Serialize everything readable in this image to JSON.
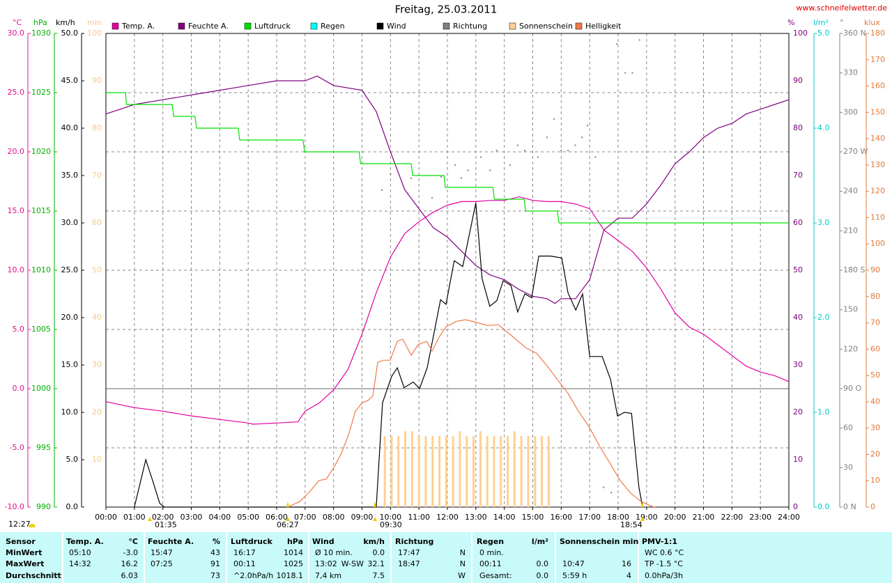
{
  "chart_data": {
    "type": "line",
    "title": "Freitag, 25.03.2011",
    "source": "www.schneifelwetter.de",
    "grid": true,
    "xlim": [
      0,
      24
    ],
    "xticks": [
      {
        "value": 0,
        "label": "00:00"
      },
      {
        "value": 1,
        "label": "01:00"
      },
      {
        "value": 2,
        "label": "02:00"
      },
      {
        "value": 3,
        "label": "03:00"
      },
      {
        "value": 4,
        "label": "04:00"
      },
      {
        "value": 5,
        "label": "05:00"
      },
      {
        "value": 6,
        "label": "06:00"
      },
      {
        "value": 7,
        "label": "07:00"
      },
      {
        "value": 8,
        "label": "08:00"
      },
      {
        "value": 9,
        "label": "09:00"
      },
      {
        "value": 10,
        "label": "10:00"
      },
      {
        "value": 11,
        "label": "11:00"
      },
      {
        "value": 12,
        "label": "12:00"
      },
      {
        "value": 13,
        "label": "13:00"
      },
      {
        "value": 14,
        "label": "14:00"
      },
      {
        "value": 15,
        "label": "15:00"
      },
      {
        "value": 16,
        "label": "16:00"
      },
      {
        "value": 17,
        "label": "17:00"
      },
      {
        "value": 18,
        "label": "18:00"
      },
      {
        "value": 19,
        "label": "19:00"
      },
      {
        "value": 20,
        "label": "20:00"
      },
      {
        "value": 21,
        "label": "21:00"
      },
      {
        "value": 22,
        "label": "22:00"
      },
      {
        "value": 23,
        "label": "23:00"
      },
      {
        "value": 24,
        "label": "24:00"
      }
    ],
    "axes": [
      {
        "unit": "°C",
        "color": "#e0108f",
        "ylim": [
          -10,
          30
        ],
        "yticks": [
          {
            "value": -10,
            "label": "-10.0"
          },
          {
            "value": -5,
            "label": "-5.0"
          },
          {
            "value": 0,
            "label": "0.0"
          },
          {
            "value": 5,
            "label": "5.0"
          },
          {
            "value": 10,
            "label": "10.0"
          },
          {
            "value": 15,
            "label": "15.0"
          },
          {
            "value": 20,
            "label": "20.0"
          },
          {
            "value": 25,
            "label": "25.0"
          },
          {
            "value": 30,
            "label": "30.0"
          }
        ]
      },
      {
        "unit": "hPa",
        "color": "#00b000",
        "ylim": [
          990,
          1030
        ],
        "yticks": [
          990,
          995,
          1000,
          1005,
          1010,
          1015,
          1020,
          1025,
          1030
        ]
      },
      {
        "unit": "km/h",
        "color": "#000000",
        "ylim": [
          0,
          50
        ],
        "yticks": [
          {
            "value": 0,
            "label": "0.0"
          },
          {
            "value": 5,
            "label": "5.0"
          },
          {
            "value": 10,
            "label": "10.0"
          },
          {
            "value": 15,
            "label": "15.0"
          },
          {
            "value": 20,
            "label": "20.0"
          },
          {
            "value": 25,
            "label": "25.0"
          },
          {
            "value": 30,
            "label": "30.0"
          },
          {
            "value": 35,
            "label": "35.0"
          },
          {
            "value": 40,
            "label": "40.0"
          },
          {
            "value": 45,
            "label": "45.0"
          },
          {
            "value": 50,
            "label": "50.0"
          }
        ]
      },
      {
        "unit": "min",
        "color": "#f8c890",
        "ylim": [
          0,
          100
        ],
        "yticks": [
          10,
          20,
          30,
          40,
          50,
          60,
          70,
          80,
          90,
          100
        ]
      },
      {
        "unit": "%",
        "color": "#800080",
        "ylim": [
          0,
          100
        ],
        "yticks": [
          0,
          10,
          20,
          30,
          40,
          50,
          60,
          70,
          80,
          90,
          100
        ]
      },
      {
        "unit": "l/m²",
        "color": "#00c8c8",
        "ylim": [
          0,
          5
        ],
        "yticks": [
          {
            "value": 0,
            "label": "0.0"
          },
          {
            "value": 1,
            "label": "1.0"
          },
          {
            "value": 2,
            "label": "2.0"
          },
          {
            "value": 3,
            "label": "3.0"
          },
          {
            "value": 4,
            "label": "4.0"
          },
          {
            "value": 5,
            "label": "5.0"
          }
        ]
      },
      {
        "unit": "°",
        "color": "#808080",
        "ylim": [
          0,
          360
        ],
        "yticks": [
          {
            "value": 0,
            "label": "0 N"
          },
          30,
          60,
          {
            "value": 90,
            "label": "90 O"
          },
          120,
          150,
          {
            "value": 180,
            "label": "180 S"
          },
          210,
          240,
          {
            "value": 270,
            "label": "270 W"
          },
          300,
          330,
          {
            "value": 360,
            "label": "360 N"
          }
        ]
      },
      {
        "unit": "klux",
        "color": "#e07838",
        "ylim": [
          0,
          180
        ],
        "yticks": [
          0,
          10,
          20,
          30,
          40,
          50,
          60,
          70,
          80,
          90,
          100,
          110,
          120,
          130,
          140,
          150,
          160,
          170,
          180
        ]
      }
    ],
    "series": [
      {
        "name": "Temp. A.",
        "color": "#e000a0",
        "axis": "°C",
        "type": "line",
        "x": [
          0,
          1,
          2,
          3,
          4,
          5,
          5.17,
          6,
          6.75,
          7,
          7.5,
          8,
          8.5,
          9,
          9.5,
          10,
          10.5,
          11,
          11.5,
          12,
          12.5,
          13,
          13.5,
          14,
          14.53,
          15,
          15.5,
          16,
          16.5,
          17,
          17.5,
          18,
          18.5,
          19,
          19.5,
          20,
          20.5,
          21,
          21.5,
          22,
          22.5,
          23,
          23.5,
          24
        ],
        "values": [
          -1.1,
          -1.6,
          -1.9,
          -2.3,
          -2.6,
          -2.9,
          -3.0,
          -2.9,
          -2.8,
          -1.9,
          -1.2,
          -0.1,
          1.6,
          4.6,
          8.1,
          11.1,
          13.1,
          14.1,
          14.9,
          15.5,
          15.8,
          15.8,
          15.9,
          15.9,
          16.2,
          15.9,
          15.8,
          15.8,
          15.6,
          15.2,
          13.4,
          12.5,
          11.6,
          10.2,
          8.4,
          6.4,
          5.2,
          4.6,
          3.7,
          2.8,
          1.9,
          1.4,
          1.1,
          0.6
        ]
      },
      {
        "name": "Feuchte A.",
        "color": "#800080",
        "axis": "%",
        "type": "line",
        "x": [
          0,
          0.5,
          1,
          2,
          3,
          4,
          5,
          6,
          7,
          7.42,
          8,
          9,
          9.5,
          10,
          10.5,
          11,
          11.5,
          12,
          12.5,
          13,
          13.5,
          14,
          14.5,
          15,
          15.5,
          15.78,
          16,
          16.5,
          17,
          17.5,
          18,
          18.5,
          19,
          19.5,
          20,
          20.5,
          21,
          21.5,
          22,
          22.5,
          23,
          23.5,
          24
        ],
        "values": [
          83,
          84,
          85,
          86,
          87,
          88,
          89,
          90,
          90,
          91,
          89,
          88,
          83.5,
          75,
          67,
          63,
          59,
          57,
          54,
          51,
          49,
          48,
          46,
          44.5,
          44,
          43,
          44,
          44,
          48,
          58.5,
          61,
          61,
          64,
          68,
          72.5,
          75,
          78,
          80,
          81,
          83,
          84,
          85,
          86
        ]
      },
      {
        "name": "Luftdruck",
        "color": "#00e000",
        "axis": "hPa",
        "type": "line",
        "x": [
          0,
          0.69,
          0.72,
          2.33,
          2.38,
          3.13,
          3.18,
          4.65,
          4.7,
          6.93,
          6.98,
          8.9,
          8.95,
          10.73,
          10.78,
          11.88,
          11.93,
          13.6,
          13.65,
          14.7,
          14.75,
          15.87,
          15.92,
          24
        ],
        "values": [
          1025,
          1025,
          1024,
          1024,
          1023,
          1023,
          1022,
          1022,
          1021,
          1021,
          1020,
          1020,
          1019,
          1019,
          1018,
          1018,
          1017,
          1017,
          1016,
          1016,
          1015,
          1015,
          1014,
          1014
        ]
      },
      {
        "name": "Regen",
        "color": "#00ffff",
        "axis": "l/m²",
        "type": "bar",
        "x": [],
        "values": []
      },
      {
        "name": "Wind",
        "color": "#000000",
        "axis": "km/h",
        "type": "line",
        "x": [
          1.0,
          1.4,
          1.64,
          1.89,
          2.06,
          9.5,
          9.72,
          10.04,
          10.24,
          10.48,
          10.8,
          11.02,
          11.29,
          11.76,
          11.95,
          12.24,
          12.54,
          13.0,
          13.22,
          13.49,
          13.74,
          13.96,
          14.23,
          14.47,
          14.72,
          14.96,
          15.21,
          15.62,
          16.02,
          16.24,
          16.51,
          16.75,
          17.0,
          17.44,
          17.73,
          17.98,
          18.22,
          18.47,
          18.73,
          18.86
        ],
        "values": [
          0,
          5.0,
          2.8,
          0.4,
          0,
          0,
          11.0,
          13.8,
          14.7,
          12.6,
          13.2,
          12.5,
          14.7,
          21.9,
          21.4,
          26.0,
          25.4,
          32.1,
          24.1,
          21.2,
          21.8,
          23.9,
          23.4,
          20.6,
          22.5,
          22.1,
          26.5,
          26.5,
          26.3,
          22.6,
          20.8,
          22.5,
          15.9,
          15.9,
          13.5,
          9.6,
          10.0,
          9.9,
          2.1,
          0
        ]
      },
      {
        "name": "Richtung",
        "color": "#808080",
        "axis": "°",
        "type": "scatter",
        "x": [
          9.7,
          10.0,
          10.73,
          11.46,
          11.78,
          12.27,
          12.49,
          12.73,
          13.18,
          13.5,
          13.73,
          14.2,
          14.47,
          14.72,
          15.18,
          15.5,
          15.75,
          16.0,
          16.24,
          16.49,
          16.73,
          16.92,
          17.2,
          17.49,
          17.76,
          17.96,
          18.25,
          18.5,
          18.75
        ],
        "values": [
          241,
          253,
          250,
          235,
          251,
          260,
          250,
          256,
          266,
          256,
          271,
          260,
          275,
          271,
          266,
          281,
          295,
          271,
          271,
          275,
          281,
          290,
          266,
          15,
          11,
          352,
          330,
          330,
          355
        ]
      },
      {
        "name": "Sonnenschein",
        "color": "#ffd090",
        "axis": "min",
        "type": "bar",
        "x": [
          9.8,
          10.04,
          10.28,
          10.52,
          10.76,
          11.0,
          11.24,
          11.48,
          11.72,
          11.96,
          12.2,
          12.44,
          12.68,
          12.92,
          13.16,
          13.4,
          13.64,
          13.88,
          14.12,
          14.36,
          14.6,
          14.84,
          15.08,
          15.32,
          15.56
        ],
        "values": [
          15,
          15,
          15,
          16,
          16,
          15,
          15,
          15,
          15,
          15,
          15,
          16,
          15,
          15,
          16,
          15,
          15,
          15,
          15,
          16,
          15,
          15,
          15,
          15,
          15
        ]
      },
      {
        "name": "Helligkeit",
        "color": "#f07848",
        "axis": "klux",
        "type": "line",
        "x": [
          6.39,
          6.81,
          7.18,
          7.49,
          7.74,
          8.03,
          8.28,
          8.52,
          8.77,
          9.01,
          9.21,
          9.38,
          9.55,
          9.75,
          9.99,
          10.24,
          10.43,
          10.73,
          10.97,
          11.27,
          11.46,
          11.71,
          11.95,
          12.32,
          12.64,
          12.93,
          13.42,
          13.79,
          14.03,
          14.4,
          14.77,
          15.13,
          15.5,
          15.87,
          16.24,
          16.6,
          16.97,
          17.34,
          17.71,
          18.07,
          18.44,
          18.81,
          19.18,
          19.3
        ],
        "values": [
          0,
          2.1,
          6.1,
          10.1,
          10.6,
          15.4,
          20.6,
          27.3,
          36.5,
          39.7,
          40.5,
          42.3,
          55.0,
          55.8,
          55.8,
          63.0,
          63.8,
          57.7,
          61.7,
          63.0,
          59.3,
          64.6,
          68.5,
          70.6,
          71.2,
          70.4,
          69.0,
          69.3,
          67.2,
          63.8,
          60.4,
          58.5,
          53.7,
          48.4,
          43.2,
          36.5,
          30.7,
          23.3,
          16.7,
          10.1,
          5.3,
          2.1,
          0.3,
          0
        ]
      }
    ],
    "markers": [
      {
        "label": "12:27"
      },
      {
        "label": "01:35"
      },
      {
        "label": "06:27"
      },
      {
        "label": "09:30"
      },
      {
        "label": "18:54"
      }
    ]
  },
  "stats_table": {
    "row_title": "Sensor",
    "row_labels": [
      "MinWert",
      "MaxWert",
      "Durchschnitt"
    ],
    "columns": [
      {
        "title": "Temp. A.",
        "unit": "°C",
        "cells": [
          {
            "left": "05:10",
            "right": "-3.0"
          },
          {
            "left": "14:32",
            "right": "16.2"
          },
          {
            "right": "6.03"
          }
        ]
      },
      {
        "title": "Feuchte A.",
        "unit": "%",
        "cells": [
          {
            "left": "15:47",
            "right": "43"
          },
          {
            "left": "07:25",
            "right": "91"
          },
          {
            "right": "73"
          }
        ]
      },
      {
        "title": "Luftdruck",
        "unit": "hPa",
        "cells": [
          {
            "left": "16:17",
            "right": "1014"
          },
          {
            "left": "00:11",
            "right": "1025"
          },
          {
            "left": "^2.0hPa/h",
            "right": "1018.1"
          }
        ]
      },
      {
        "title": "Wind",
        "unit": "km/h",
        "cells": [
          {
            "left": "Ø 10 min.",
            "right": "0.0"
          },
          {
            "left": "13:02",
            "middle": "W-SW",
            "right": "32.1"
          },
          {
            "left": "7,4 km",
            "right": "7.5"
          }
        ]
      },
      {
        "title": "Richtung",
        "cells": [
          {
            "left": "17:47",
            "right": "N"
          },
          {
            "left": "18:47",
            "right": "N"
          },
          {
            "right": "W"
          }
        ]
      },
      {
        "title": "Regen",
        "unit": "l/m²",
        "cells": [
          {
            "left": "0 min."
          },
          {
            "left": "00:11",
            "right": "0.0"
          },
          {
            "left": "Gesamt:",
            "right": "0.0"
          }
        ]
      },
      {
        "title": "Sonnenschein min",
        "cells": [
          null,
          {
            "left": "10:47",
            "right": "16"
          },
          {
            "left": "5:59 h",
            "right": "4"
          }
        ]
      },
      {
        "title": "PMV-1:1",
        "cells": [
          {
            "left": "WC 0.6 °C"
          },
          {
            "left": "TP -1.5 °C"
          },
          {
            "left": "0.0hPa/3h"
          }
        ]
      }
    ]
  }
}
